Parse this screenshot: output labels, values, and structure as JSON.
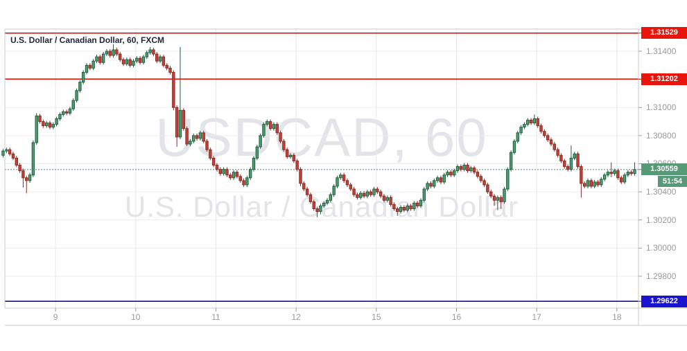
{
  "legend": {
    "text": "U.S. Dollar / Canadian Dollar, 60, FXCM"
  },
  "watermark": {
    "line1": "USDCAD, 60",
    "line2": "U.S. Dollar / Canadian Dollar"
  },
  "colors": {
    "up_fill": "#539c71",
    "up_border": "#1d5f3d",
    "down_fill": "#c4423b",
    "down_border": "#8a2a23",
    "grid_h": "#ececec",
    "grid_v": "#e7e7ea",
    "pane_border": "#c8c8c8",
    "axis_text": "#999999",
    "legend_text": "#20253a",
    "watermark": "#e3e4e9",
    "resistance_line": "#e8150c",
    "last_price_badge": "#569a78",
    "last_price_line": "#4e7d74",
    "support_badge": "#1b14cf",
    "support_line": "#12128f"
  },
  "axis": {
    "price_ticks": [
      {
        "label": "1.31400",
        "value": 1.314
      },
      {
        "label": "1.31200",
        "value": 1.312
      },
      {
        "label": "1.31000",
        "value": 1.31
      },
      {
        "label": "1.30800",
        "value": 1.308
      },
      {
        "label": "1.30600",
        "value": 1.306
      },
      {
        "label": "1.30400",
        "value": 1.304
      },
      {
        "label": "1.30200",
        "value": 1.302
      },
      {
        "label": "1.30000",
        "value": 1.3
      },
      {
        "label": "1.29800",
        "value": 1.298
      }
    ],
    "time_ticks": [
      {
        "label": "9",
        "index": 16
      },
      {
        "label": "10",
        "index": 40
      },
      {
        "label": "11",
        "index": 64
      },
      {
        "label": "12",
        "index": 88
      },
      {
        "label": "15",
        "index": 112
      },
      {
        "label": "16",
        "index": 136
      },
      {
        "label": "17",
        "index": 160
      },
      {
        "label": "18",
        "index": 184
      }
    ]
  },
  "levels": [
    {
      "label": "1.31529",
      "value": 1.31529,
      "badge_color": "#e8150c",
      "line_color": "#e8150c",
      "style": "solid",
      "role": "resistance"
    },
    {
      "label": "1.31202",
      "value": 1.31202,
      "badge_color": "#e8150c",
      "line_color": "#e8150c",
      "style": "solid",
      "role": "resistance"
    },
    {
      "label": "1.30559",
      "value": 1.30559,
      "badge_color": "#569a78",
      "line_color": "#4e7d74",
      "style": "dotted",
      "role": "last-price",
      "countdown": "51:54"
    },
    {
      "label": "1.29622",
      "value": 1.29622,
      "badge_color": "#1b14cf",
      "line_color": "#12128f",
      "style": "solid",
      "role": "support"
    }
  ],
  "chart_data": {
    "type": "candlestick",
    "symbol": "USDCAD",
    "interval": "60",
    "exchange": "FXCM",
    "title": "U.S. Dollar / Canadian Dollar, 60, FXCM",
    "last_price": 1.30559,
    "countdown": "51:54",
    "visible_price_range": [
      1.29573,
      1.31558
    ],
    "x_day_labels": [
      "9",
      "10",
      "11",
      "12",
      "15",
      "16",
      "17",
      "18"
    ],
    "price_scale": 1e-05,
    "ohlc_note": "hourly candles [open,high,low,close] in units of 0.00001; values estimated from chart pixels",
    "ohlc": [
      [
        130660,
        130705,
        130645,
        130690
      ],
      [
        130690,
        130715,
        130675,
        130700
      ],
      [
        130700,
        130715,
        130655,
        130670
      ],
      [
        130670,
        130685,
        130625,
        130640
      ],
      [
        130640,
        130655,
        130575,
        130590
      ],
      [
        130590,
        130605,
        130535,
        130550
      ],
      [
        130550,
        130565,
        130430,
        130500
      ],
      [
        130500,
        130515,
        130390,
        130480
      ],
      [
        130480,
        130535,
        130465,
        130520
      ],
      [
        130520,
        130765,
        130505,
        130750
      ],
      [
        130750,
        130960,
        130735,
        130940
      ],
      [
        130940,
        130955,
        130885,
        130900
      ],
      [
        130900,
        130915,
        130855,
        130870
      ],
      [
        130870,
        130905,
        130855,
        130890
      ],
      [
        130890,
        130905,
        130845,
        130860
      ],
      [
        130860,
        130895,
        130845,
        130880
      ],
      [
        130880,
        130935,
        130865,
        130920
      ],
      [
        130920,
        130965,
        130905,
        130950
      ],
      [
        130950,
        130985,
        130935,
        130970
      ],
      [
        130970,
        130985,
        130945,
        130960
      ],
      [
        130960,
        131005,
        130945,
        130990
      ],
      [
        130990,
        131065,
        130975,
        131050
      ],
      [
        131050,
        131135,
        131035,
        131120
      ],
      [
        131120,
        131195,
        131105,
        131180
      ],
      [
        131180,
        131265,
        131165,
        131250
      ],
      [
        131250,
        131315,
        131235,
        131300
      ],
      [
        131300,
        131315,
        131265,
        131280
      ],
      [
        131280,
        131345,
        131265,
        131330
      ],
      [
        131330,
        131375,
        131315,
        131360
      ],
      [
        131360,
        131375,
        131305,
        131320
      ],
      [
        131320,
        131395,
        131305,
        131380
      ],
      [
        131380,
        131415,
        131365,
        131400
      ],
      [
        131400,
        131415,
        131355,
        131370
      ],
      [
        131370,
        131450,
        131355,
        131410
      ],
      [
        131410,
        131425,
        131365,
        131380
      ],
      [
        131380,
        131395,
        131325,
        131340
      ],
      [
        131340,
        131355,
        131295,
        131310
      ],
      [
        131310,
        131355,
        131295,
        131340
      ],
      [
        131340,
        131355,
        131285,
        131300
      ],
      [
        131300,
        131345,
        131285,
        131330
      ],
      [
        131330,
        131365,
        131315,
        131350
      ],
      [
        131350,
        131365,
        131305,
        131320
      ],
      [
        131320,
        131375,
        131305,
        131360
      ],
      [
        131360,
        131405,
        131345,
        131390
      ],
      [
        131390,
        131430,
        131375,
        131410
      ],
      [
        131410,
        131425,
        131365,
        131380
      ],
      [
        131380,
        131395,
        131315,
        131330
      ],
      [
        131330,
        131375,
        131315,
        131360
      ],
      [
        131360,
        131375,
        131285,
        131300
      ],
      [
        131300,
        131315,
        131265,
        131280
      ],
      [
        131280,
        131295,
        131235,
        131250
      ],
      [
        131250,
        131265,
        130980,
        131000
      ],
      [
        131000,
        131015,
        130720,
        130790
      ],
      [
        130790,
        131430,
        130775,
        130980
      ],
      [
        130980,
        130995,
        130835,
        130850
      ],
      [
        130850,
        130865,
        130725,
        130740
      ],
      [
        130740,
        130775,
        130725,
        130760
      ],
      [
        130760,
        130815,
        130745,
        130800
      ],
      [
        130800,
        130815,
        130765,
        130780
      ],
      [
        130780,
        130835,
        130765,
        130820
      ],
      [
        130820,
        130835,
        130745,
        130760
      ],
      [
        130760,
        130775,
        130685,
        130700
      ],
      [
        130700,
        130715,
        130625,
        130640
      ],
      [
        130640,
        130655,
        130575,
        130590
      ],
      [
        130590,
        130605,
        130545,
        130560
      ],
      [
        130560,
        130575,
        130515,
        130530
      ],
      [
        130530,
        130575,
        130515,
        130560
      ],
      [
        130560,
        130575,
        130505,
        130520
      ],
      [
        130520,
        130535,
        130485,
        130500
      ],
      [
        130500,
        130555,
        130485,
        130540
      ],
      [
        130540,
        130555,
        130495,
        130510
      ],
      [
        130510,
        130525,
        130465,
        130480
      ],
      [
        130480,
        130495,
        130435,
        130450
      ],
      [
        130450,
        130515,
        130435,
        130500
      ],
      [
        130500,
        130575,
        130485,
        130560
      ],
      [
        130560,
        130655,
        130545,
        130640
      ],
      [
        130640,
        130735,
        130625,
        130720
      ],
      [
        130720,
        130815,
        130705,
        130800
      ],
      [
        130800,
        130895,
        130785,
        130880
      ],
      [
        130880,
        130915,
        130865,
        130900
      ],
      [
        130900,
        130915,
        130835,
        130850
      ],
      [
        130850,
        130895,
        130835,
        130880
      ],
      [
        130880,
        130895,
        130805,
        130820
      ],
      [
        130820,
        130835,
        130745,
        130760
      ],
      [
        130760,
        130775,
        130685,
        130700
      ],
      [
        130700,
        130715,
        130635,
        130650
      ],
      [
        130650,
        130675,
        130635,
        130660
      ],
      [
        130660,
        130675,
        130605,
        130620
      ],
      [
        130620,
        130635,
        130545,
        130560
      ],
      [
        130560,
        130575,
        130440,
        130460
      ],
      [
        130460,
        130475,
        130405,
        130420
      ],
      [
        130420,
        130435,
        130365,
        130380
      ],
      [
        130380,
        130395,
        130315,
        130330
      ],
      [
        130330,
        130345,
        130265,
        130280
      ],
      [
        130280,
        130295,
        130220,
        130260
      ],
      [
        130260,
        130315,
        130240,
        130300
      ],
      [
        130300,
        130335,
        130285,
        130320
      ],
      [
        130320,
        130355,
        130305,
        130340
      ],
      [
        130340,
        130395,
        130325,
        130380
      ],
      [
        130380,
        130455,
        130365,
        130440
      ],
      [
        130440,
        130515,
        130425,
        130500
      ],
      [
        130500,
        130535,
        130485,
        130520
      ],
      [
        130520,
        130535,
        130465,
        130480
      ],
      [
        130480,
        130495,
        130435,
        130450
      ],
      [
        130450,
        130465,
        130405,
        130420
      ],
      [
        130420,
        130435,
        130365,
        130380
      ],
      [
        130380,
        130395,
        130345,
        130360
      ],
      [
        130360,
        130405,
        130345,
        130390
      ],
      [
        130390,
        130405,
        130355,
        130370
      ],
      [
        130370,
        130415,
        130355,
        130400
      ],
      [
        130400,
        130415,
        130365,
        130380
      ],
      [
        130380,
        130435,
        130365,
        130420
      ],
      [
        130420,
        130435,
        130385,
        130400
      ],
      [
        130400,
        130415,
        130355,
        130370
      ],
      [
        130370,
        130385,
        130325,
        130340
      ],
      [
        130340,
        130375,
        130325,
        130360
      ],
      [
        130360,
        130375,
        130295,
        130310
      ],
      [
        130310,
        130325,
        130265,
        130280
      ],
      [
        130280,
        130295,
        130230,
        130260
      ],
      [
        130260,
        130305,
        130245,
        130290
      ],
      [
        130290,
        130305,
        130255,
        130270
      ],
      [
        130270,
        130315,
        130255,
        130300
      ],
      [
        130300,
        130315,
        130265,
        130280
      ],
      [
        130280,
        130335,
        130265,
        130320
      ],
      [
        130320,
        130335,
        130285,
        130300
      ],
      [
        130300,
        130355,
        130285,
        130340
      ],
      [
        130340,
        130435,
        130325,
        130420
      ],
      [
        130420,
        130475,
        130405,
        130460
      ],
      [
        130460,
        130475,
        130425,
        130440
      ],
      [
        130440,
        130495,
        130425,
        130480
      ],
      [
        130480,
        130515,
        130465,
        130500
      ],
      [
        130500,
        130515,
        130455,
        130470
      ],
      [
        130470,
        130535,
        130455,
        130520
      ],
      [
        130520,
        130555,
        130505,
        130540
      ],
      [
        130540,
        130555,
        130505,
        130520
      ],
      [
        130520,
        130565,
        130505,
        130550
      ],
      [
        130550,
        130595,
        130535,
        130580
      ],
      [
        130580,
        130595,
        130545,
        130560
      ],
      [
        130560,
        130605,
        130545,
        130590
      ],
      [
        130590,
        130605,
        130535,
        130550
      ],
      [
        130550,
        130585,
        130535,
        130570
      ],
      [
        130570,
        130585,
        130525,
        130540
      ],
      [
        130540,
        130555,
        130495,
        130510
      ],
      [
        130510,
        130525,
        130465,
        130480
      ],
      [
        130480,
        130495,
        130435,
        130450
      ],
      [
        130450,
        130465,
        130385,
        130400
      ],
      [
        130400,
        130415,
        130355,
        130370
      ],
      [
        130370,
        130385,
        130300,
        130340
      ],
      [
        130340,
        130375,
        130270,
        130360
      ],
      [
        130360,
        130375,
        130280,
        130330
      ],
      [
        130330,
        130435,
        130315,
        130420
      ],
      [
        130420,
        130575,
        130405,
        130560
      ],
      [
        130560,
        130695,
        130545,
        130680
      ],
      [
        130680,
        130775,
        130665,
        130760
      ],
      [
        130760,
        130835,
        130745,
        130820
      ],
      [
        130820,
        130875,
        130805,
        130860
      ],
      [
        130860,
        130895,
        130845,
        130880
      ],
      [
        130880,
        130925,
        130865,
        130910
      ],
      [
        130910,
        130925,
        130875,
        130890
      ],
      [
        130890,
        130950,
        130875,
        130920
      ],
      [
        130920,
        130935,
        130855,
        130870
      ],
      [
        130870,
        130885,
        130815,
        130830
      ],
      [
        130830,
        130845,
        130785,
        130800
      ],
      [
        130800,
        130815,
        130755,
        130770
      ],
      [
        130770,
        130785,
        130725,
        130740
      ],
      [
        130740,
        130755,
        130685,
        130700
      ],
      [
        130700,
        130715,
        130645,
        130660
      ],
      [
        130660,
        130675,
        130605,
        130620
      ],
      [
        130620,
        130635,
        130565,
        130580
      ],
      [
        130580,
        130595,
        130545,
        130560
      ],
      [
        130560,
        130730,
        130545,
        130640
      ],
      [
        130640,
        130685,
        130625,
        130670
      ],
      [
        130670,
        130685,
        130565,
        130580
      ],
      [
        130580,
        130595,
        130360,
        130460
      ],
      [
        130460,
        130475,
        130425,
        130440
      ],
      [
        130440,
        130495,
        130425,
        130480
      ],
      [
        130480,
        130495,
        130425,
        130440
      ],
      [
        130440,
        130485,
        130425,
        130470
      ],
      [
        130470,
        130485,
        130435,
        130450
      ],
      [
        130450,
        130505,
        130435,
        130490
      ],
      [
        130490,
        130535,
        130475,
        130520
      ],
      [
        130520,
        130555,
        130505,
        130540
      ],
      [
        130540,
        130610,
        130505,
        130530
      ],
      [
        130530,
        130565,
        130515,
        130550
      ],
      [
        130550,
        130565,
        130485,
        130500
      ],
      [
        130500,
        130515,
        130455,
        130470
      ],
      [
        130470,
        130535,
        130455,
        130520
      ],
      [
        130520,
        130555,
        130505,
        130540
      ],
      [
        130540,
        130555,
        130515,
        130530
      ],
      [
        130530,
        130610,
        130515,
        130559
      ]
    ]
  }
}
